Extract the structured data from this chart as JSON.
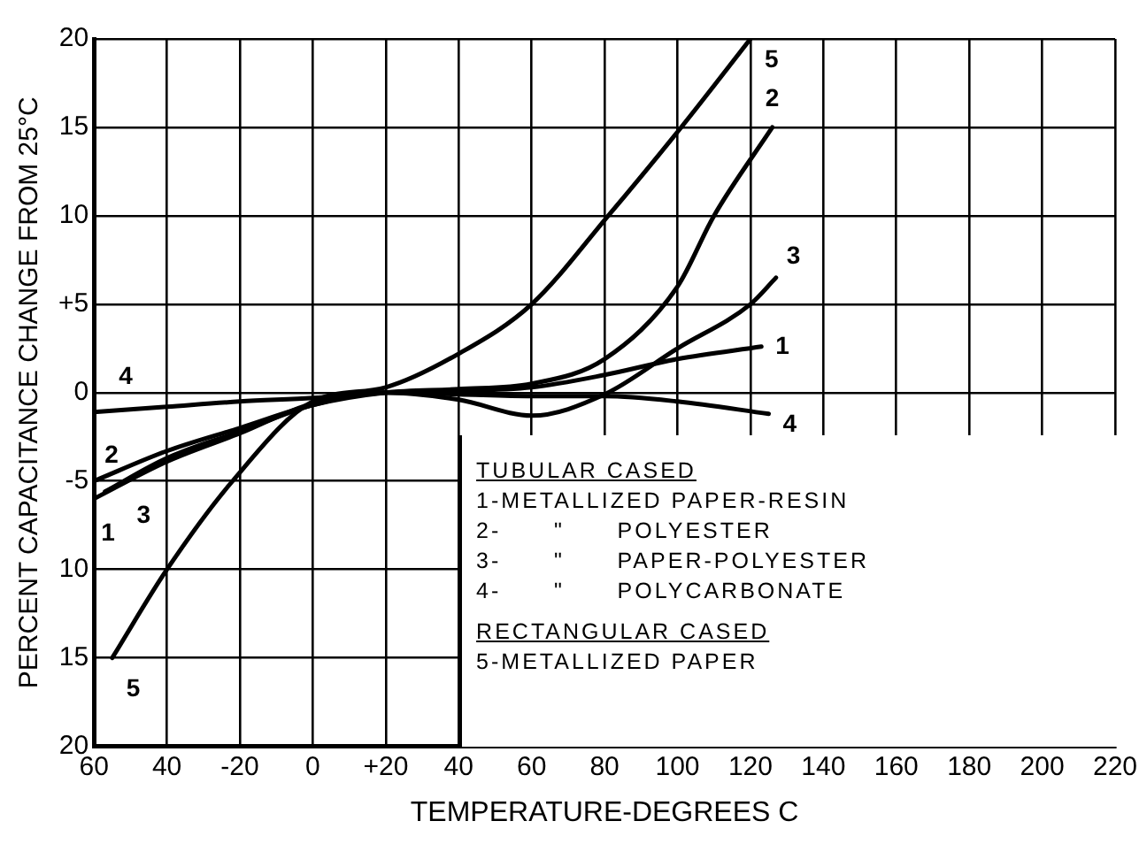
{
  "chart_data": {
    "type": "line",
    "xlabel": "TEMPERATURE-DEGREES C",
    "ylabel": "PERCENT CAPACITANCE CHANGE FROM 25°C",
    "xlim": [
      -60,
      220
    ],
    "ylim": [
      -20,
      20
    ],
    "xticks": [
      {
        "value": -60,
        "label": "60"
      },
      {
        "value": -40,
        "label": "40"
      },
      -20,
      0,
      {
        "value": 20,
        "label": "+20"
      },
      40,
      60,
      80,
      100,
      120,
      140,
      160,
      180,
      200,
      220
    ],
    "yticks": [
      {
        "value": -20,
        "label": "20"
      },
      {
        "value": -15,
        "label": "15"
      },
      {
        "value": -10,
        "label": "10"
      },
      -5,
      0,
      {
        "value": 5,
        "label": "+5"
      },
      10,
      15,
      20
    ],
    "grid": true,
    "legend": false,
    "marker": "none",
    "line_style": "solid",
    "series": [
      {
        "name": "1",
        "color": "#000000",
        "x": [
          -60,
          -40,
          -20,
          0,
          20,
          40,
          60,
          80,
          100,
          123
        ],
        "values": [
          -6,
          -3.9,
          -2.3,
          -0.6,
          0,
          0.1,
          0.3,
          1,
          1.9,
          2.6
        ]
      },
      {
        "name": "2",
        "color": "#000000",
        "x": [
          -60,
          -40,
          -20,
          0,
          20,
          40,
          60,
          80,
          100,
          110,
          126
        ],
        "values": [
          -5,
          -3.3,
          -2,
          -0.7,
          0,
          0.2,
          0.5,
          1.9,
          6,
          10,
          15
        ]
      },
      {
        "name": "3",
        "color": "#000000",
        "x": [
          -57,
          -40,
          -20,
          0,
          20,
          40,
          60,
          80,
          100,
          120,
          127
        ],
        "values": [
          -5.6,
          -3.7,
          -2.2,
          -0.7,
          0,
          -0.4,
          -1.3,
          -0.1,
          2.5,
          5,
          6.5
        ]
      },
      {
        "name": "4",
        "color": "#000000",
        "x": [
          -60,
          -40,
          -20,
          0,
          20,
          40,
          60,
          80,
          100,
          125
        ],
        "values": [
          -1.1,
          -0.8,
          -0.5,
          -0.3,
          0,
          -0.1,
          -0.2,
          -0.2,
          -0.5,
          -1.2
        ]
      },
      {
        "name": "5",
        "color": "#000000",
        "x": [
          -55,
          -40,
          -22,
          0,
          20,
          40,
          60,
          81,
          101,
          120
        ],
        "values": [
          -15,
          -10,
          -5,
          -0.5,
          0.3,
          2.2,
          5,
          10,
          15,
          20
        ]
      }
    ],
    "annotations": [
      "TUBULAR CASED",
      "1-METALLIZED PAPER-RESIN",
      "2-      \"      POLYESTER",
      "3-      \"      PAPER-POLYESTER",
      "4-      \"      POLYCARBONATE",
      "RECTANGULAR CASED",
      "5-METALLIZED PAPER"
    ]
  }
}
